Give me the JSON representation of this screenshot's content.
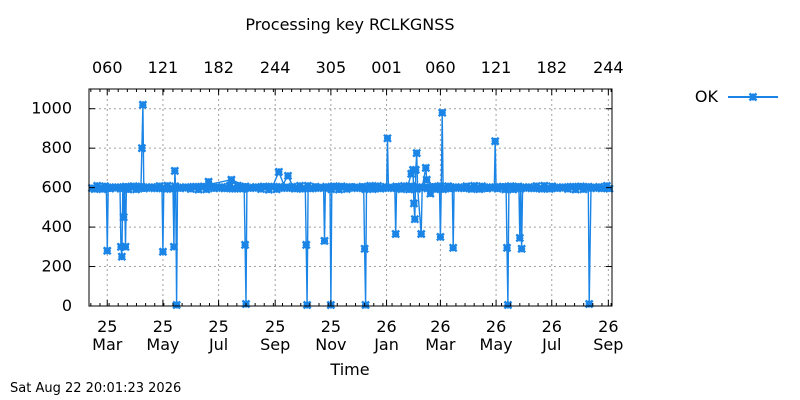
{
  "chart_data": {
    "type": "line",
    "title": "Processing key RCLKGNSS",
    "xlabel": "Time",
    "ylabel": "",
    "ylim": [
      0,
      1100
    ],
    "y_ticks": [
      0,
      200,
      400,
      600,
      800,
      1000
    ],
    "xlim": [
      "2025-02-09",
      "2026-09-05"
    ],
    "x_ticks_bottom": [
      {
        "date": "2025-03-01",
        "line1": "25",
        "line2": "Mar"
      },
      {
        "date": "2025-05-01",
        "line1": "25",
        "line2": "May"
      },
      {
        "date": "2025-07-01",
        "line1": "25",
        "line2": "Jul"
      },
      {
        "date": "2025-09-01",
        "line1": "25",
        "line2": "Sep"
      },
      {
        "date": "2025-11-01",
        "line1": "25",
        "line2": "Nov"
      },
      {
        "date": "2026-01-01",
        "line1": "26",
        "line2": "Jan"
      },
      {
        "date": "2026-03-01",
        "line1": "26",
        "line2": "Mar"
      },
      {
        "date": "2026-05-01",
        "line1": "26",
        "line2": "May"
      },
      {
        "date": "2026-07-01",
        "line1": "26",
        "line2": "Jul"
      },
      {
        "date": "2026-09-01",
        "line1": "26",
        "line2": "Sep"
      }
    ],
    "x_ticks_top": [
      {
        "date": "2025-03-01",
        "label": "060"
      },
      {
        "date": "2025-05-01",
        "label": "121"
      },
      {
        "date": "2025-07-01",
        "label": "182"
      },
      {
        "date": "2025-09-01",
        "label": "244"
      },
      {
        "date": "2025-11-01",
        "label": "305"
      },
      {
        "date": "2026-01-01",
        "label": "001"
      },
      {
        "date": "2026-03-01",
        "label": "060"
      },
      {
        "date": "2026-05-01",
        "label": "121"
      },
      {
        "date": "2026-07-01",
        "label": "182"
      },
      {
        "date": "2026-09-01",
        "label": "244"
      }
    ],
    "grid": true,
    "legend_position": "right",
    "series": [
      {
        "name": "OK",
        "color": "#1a85e6",
        "marker": "x-cross",
        "baseline": 600,
        "points": [
          [
            "2025-02-09",
            600
          ],
          [
            "2025-02-28",
            610
          ],
          [
            "2025-03-01",
            280
          ],
          [
            "2025-03-02",
            600
          ],
          [
            "2025-03-15",
            600
          ],
          [
            "2025-03-16",
            300
          ],
          [
            "2025-03-17",
            250
          ],
          [
            "2025-03-18",
            600
          ],
          [
            "2025-03-19",
            450
          ],
          [
            "2025-03-20",
            600
          ],
          [
            "2025-03-21",
            300
          ],
          [
            "2025-03-22",
            600
          ],
          [
            "2025-04-05",
            600
          ],
          [
            "2025-04-07",
            610
          ],
          [
            "2025-04-08",
            800
          ],
          [
            "2025-04-09",
            1020
          ],
          [
            "2025-04-10",
            600
          ],
          [
            "2025-04-30",
            600
          ],
          [
            "2025-05-01",
            275
          ],
          [
            "2025-05-02",
            600
          ],
          [
            "2025-05-12",
            600
          ],
          [
            "2025-05-13",
            300
          ],
          [
            "2025-05-14",
            685
          ],
          [
            "2025-05-15",
            600
          ],
          [
            "2025-05-16",
            5
          ],
          [
            "2025-05-17",
            600
          ],
          [
            "2025-06-15",
            610
          ],
          [
            "2025-06-20",
            630
          ],
          [
            "2025-06-25",
            620
          ],
          [
            "2025-07-15",
            640
          ],
          [
            "2025-07-25",
            620
          ],
          [
            "2025-07-29",
            600
          ],
          [
            "2025-07-30",
            310
          ],
          [
            "2025-07-31",
            10
          ],
          [
            "2025-08-01",
            600
          ],
          [
            "2025-08-30",
            615
          ],
          [
            "2025-09-05",
            680
          ],
          [
            "2025-09-10",
            620
          ],
          [
            "2025-09-15",
            660
          ],
          [
            "2025-09-20",
            610
          ],
          [
            "2025-10-04",
            600
          ],
          [
            "2025-10-05",
            310
          ],
          [
            "2025-10-06",
            5
          ],
          [
            "2025-10-07",
            600
          ],
          [
            "2025-10-20",
            615
          ],
          [
            "2025-10-24",
            600
          ],
          [
            "2025-10-25",
            330
          ],
          [
            "2025-10-26",
            600
          ],
          [
            "2025-10-31",
            600
          ],
          [
            "2025-11-01",
            5
          ],
          [
            "2025-11-02",
            600
          ],
          [
            "2025-11-25",
            620
          ],
          [
            "2025-12-07",
            600
          ],
          [
            "2025-12-08",
            290
          ],
          [
            "2025-12-09",
            5
          ],
          [
            "2025-12-10",
            600
          ],
          [
            "2025-12-20",
            620
          ],
          [
            "2026-01-01",
            600
          ],
          [
            "2026-01-02",
            850
          ],
          [
            "2026-01-03",
            600
          ],
          [
            "2026-01-10",
            600
          ],
          [
            "2026-01-11",
            365
          ],
          [
            "2026-01-12",
            600
          ],
          [
            "2026-01-18",
            600
          ],
          [
            "2026-01-20",
            580
          ],
          [
            "2026-01-25",
            620
          ],
          [
            "2026-01-28",
            670
          ],
          [
            "2026-01-30",
            690
          ],
          [
            "2026-01-31",
            520
          ],
          [
            "2026-02-01",
            440
          ],
          [
            "2026-02-02",
            690
          ],
          [
            "2026-02-03",
            775
          ],
          [
            "2026-02-04",
            600
          ],
          [
            "2026-02-08",
            365
          ],
          [
            "2026-02-09",
            600
          ],
          [
            "2026-02-13",
            700
          ],
          [
            "2026-02-14",
            640
          ],
          [
            "2026-02-17",
            620
          ],
          [
            "2026-02-18",
            570
          ],
          [
            "2026-02-19",
            600
          ],
          [
            "2026-02-28",
            600
          ],
          [
            "2026-03-01",
            350
          ],
          [
            "2026-03-02",
            600
          ],
          [
            "2026-03-03",
            980
          ],
          [
            "2026-03-04",
            600
          ],
          [
            "2026-03-14",
            600
          ],
          [
            "2026-03-15",
            295
          ],
          [
            "2026-03-16",
            600
          ],
          [
            "2026-04-10",
            600
          ],
          [
            "2026-04-29",
            600
          ],
          [
            "2026-04-30",
            835
          ],
          [
            "2026-05-01",
            600
          ],
          [
            "2026-05-12",
            600
          ],
          [
            "2026-05-13",
            295
          ],
          [
            "2026-05-14",
            5
          ],
          [
            "2026-05-15",
            600
          ],
          [
            "2026-05-26",
            600
          ],
          [
            "2026-05-27",
            345
          ],
          [
            "2026-05-28",
            600
          ],
          [
            "2026-05-29",
            290
          ],
          [
            "2026-05-30",
            600
          ],
          [
            "2026-06-10",
            600
          ],
          [
            "2026-07-15",
            610
          ],
          [
            "2026-08-10",
            600
          ],
          [
            "2026-08-11",
            10
          ],
          [
            "2026-08-13",
            600
          ],
          [
            "2026-08-25",
            600
          ],
          [
            "2026-09-05",
            600
          ]
        ]
      }
    ]
  },
  "legend": {
    "label": "OK"
  },
  "footer": {
    "timestamp": "Sat Aug 22 20:01:23 2026"
  }
}
